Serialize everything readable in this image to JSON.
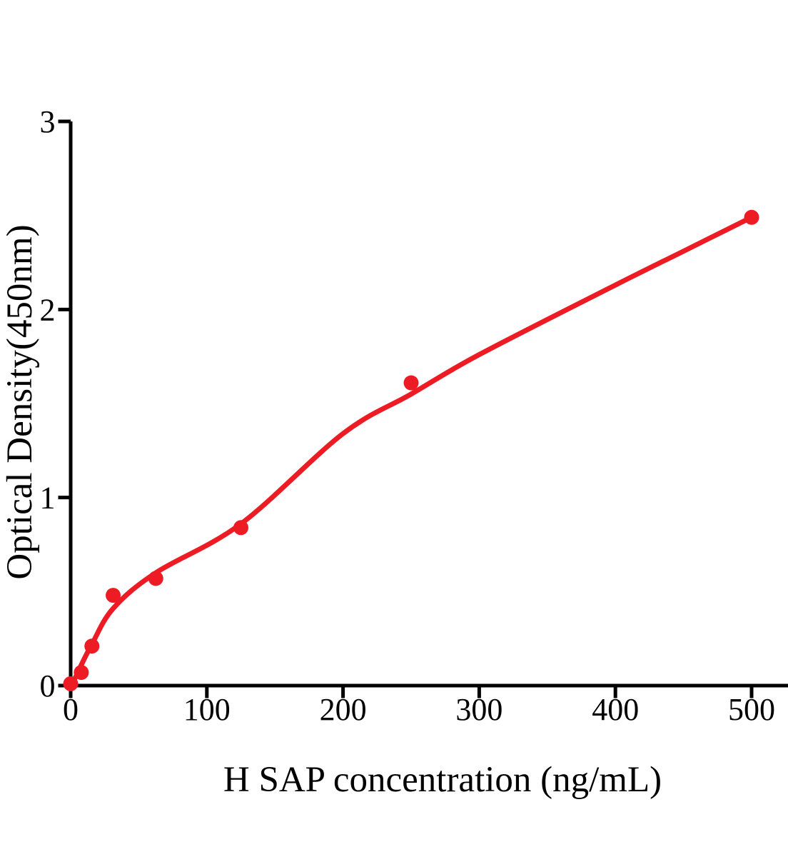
{
  "chart_data": {
    "type": "scatter",
    "title": "",
    "xlabel": "H SAP concentration (ng/mL)",
    "ylabel": "Optical Density(450nm)",
    "xlim": [
      0,
      527
    ],
    "ylim": [
      0,
      3
    ],
    "x_ticks": [
      "0",
      "100",
      "200",
      "300",
      "400",
      "500"
    ],
    "x_tick_values": [
      0,
      100,
      200,
      300,
      400,
      500
    ],
    "y_ticks": [
      "0",
      "1",
      "2",
      "3"
    ],
    "y_tick_values": [
      0,
      1,
      2,
      3
    ],
    "grid": false,
    "legend": "none",
    "series": [
      {
        "name": "standard-points",
        "type": "scatter",
        "marker": "circle",
        "color": "#ED1C24",
        "x": [
          0,
          7.8,
          15.6,
          31.2,
          62.5,
          125,
          250,
          500
        ],
        "y": [
          0.01,
          0.07,
          0.21,
          0.48,
          0.57,
          0.84,
          1.61,
          2.49
        ]
      },
      {
        "name": "fitted-curve",
        "type": "line",
        "color": "#ED1C24",
        "x": [
          0,
          4,
          7.8,
          15.6,
          31.2,
          62.5,
          125,
          200,
          250,
          300,
          400,
          450,
          500
        ],
        "y": [
          0,
          0.05,
          0.11,
          0.22,
          0.41,
          0.6,
          0.86,
          1.34,
          1.55,
          1.76,
          2.13,
          2.31,
          2.49
        ]
      }
    ],
    "colors": {
      "axis": "#000000",
      "series": "#ED1C24",
      "background": "#ffffff"
    }
  }
}
